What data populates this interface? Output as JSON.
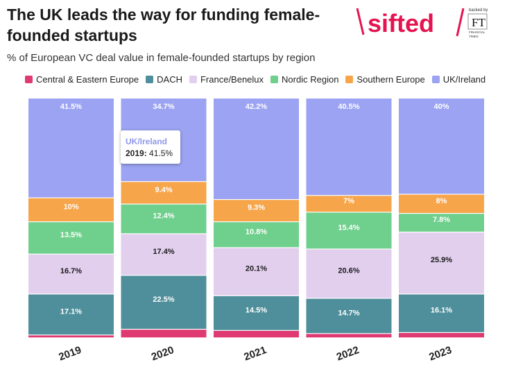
{
  "header": {
    "title": "The UK leads the way for funding female-founded startups",
    "subtitle": "% of European VC deal value in female-founded startups by region"
  },
  "logo": {
    "brand": "sifted",
    "backed_by": "backed by",
    "ft_mark": "FT",
    "ft_text": "FINANCIAL TIMES",
    "brand_color": "#e5134f"
  },
  "tooltip": {
    "series": "UK/Ireland",
    "year": "2019:",
    "value": "41.5%"
  },
  "chart_data": {
    "type": "bar",
    "stacked": true,
    "categories": [
      "2019",
      "2020",
      "2021",
      "2022",
      "2023"
    ],
    "ylim": [
      0,
      100
    ],
    "legend_position": "top",
    "series": [
      {
        "name": "Central & Eastern Europe",
        "color": "#e03a73",
        "values": [
          1.2,
          3.6,
          3.1,
          1.8,
          2.2
        ],
        "labels": [
          "",
          "",
          "",
          "",
          ""
        ]
      },
      {
        "name": "DACH",
        "color": "#4e8f9b",
        "values": [
          17.1,
          22.5,
          14.5,
          14.7,
          16.1
        ],
        "labels": [
          "17.1%",
          "22.5%",
          "14.5%",
          "14.7%",
          "16.1%"
        ]
      },
      {
        "name": "France/Benelux",
        "color": "#e2cfee",
        "values": [
          16.7,
          17.4,
          20.1,
          20.6,
          25.9
        ],
        "labels": [
          "16.7%",
          "17.4%",
          "20.1%",
          "20.6%",
          "25.9%"
        ]
      },
      {
        "name": "Nordic Region",
        "color": "#6fcf8c",
        "values": [
          13.5,
          12.4,
          10.8,
          15.4,
          7.8
        ],
        "labels": [
          "13.5%",
          "12.4%",
          "10.8%",
          "15.4%",
          "7.8%"
        ]
      },
      {
        "name": "Southern Europe",
        "color": "#f7a54a",
        "values": [
          10,
          9.4,
          9.3,
          7,
          8
        ],
        "labels": [
          "10%",
          "9.4%",
          "9.3%",
          "7%",
          "8%"
        ]
      },
      {
        "name": "UK/Ireland",
        "color": "#9ba3f2",
        "values": [
          41.5,
          34.7,
          42.2,
          40.5,
          40
        ],
        "labels": [
          "41.5%",
          "34.7%",
          "42.2%",
          "40.5%",
          "40%"
        ]
      }
    ]
  }
}
